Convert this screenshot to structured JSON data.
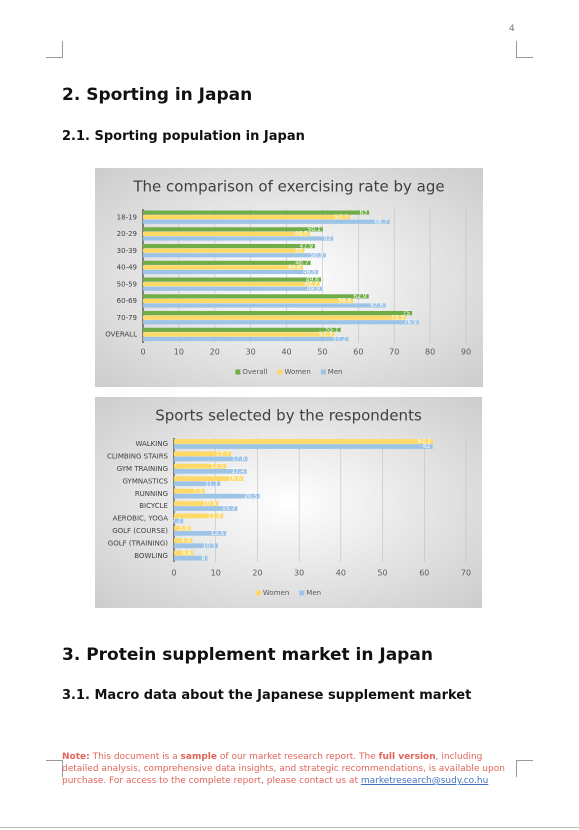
{
  "document": {
    "page_number": "4",
    "heading_1": "2. Sporting in Japan",
    "heading_2": "2.1. Sporting population in Japan",
    "heading_3": "3. Protein supplement market in Japan",
    "heading_4": "3.1. Macro data about the Japanese supplement market",
    "note": {
      "label": "Note:",
      "text_1": " This document is a ",
      "bold_1": "sample",
      "text_2": " of our market research report. The ",
      "bold_2": "full version",
      "text_3": ", including detailed analysis, comprehensive data insights, and strategic recommendations, is available upon purchase. For access to the complete report, please contact us at ",
      "email": "marketresearch@sudy.co.hu"
    }
  },
  "chart_data": [
    {
      "type": "hbar",
      "title": "The comparison of exercising rate by age",
      "categories": [
        "18-19",
        "20-29",
        "30-39",
        "40-49",
        "50-59",
        "60-69",
        "70-79",
        "OVERALL"
      ],
      "series": [
        {
          "name": "Overall",
          "color": "#70ad47",
          "values": [
            63,
            50.1,
            47.9,
            46.7,
            49.6,
            62.9,
            75,
            55.1
          ]
        },
        {
          "name": "Women",
          "color": "#ffd966",
          "values": [
            57.7,
            46.5,
            45,
            44.6,
            49.2,
            58.6,
            73.3,
            53.3
          ]
        },
        {
          "name": "Men",
          "color": "#9dc3e6",
          "values": [
            68.7,
            53,
            50.9,
            48.8,
            49.9,
            67.6,
            76.9,
            57.2
          ]
        }
      ],
      "xlim": [
        0,
        90
      ],
      "xticks": [
        0,
        10,
        20,
        30,
        40,
        50,
        60,
        70,
        80,
        90
      ],
      "grid": true,
      "legend": "bottom"
    },
    {
      "type": "hbar",
      "title": "Sports selected by the respondents",
      "categories": [
        "WALKING",
        "CLIMBING STAIRS",
        "GYM TRAINING",
        "GYMNASTICS",
        "RUNNING",
        "BICYCLE",
        "AEROBIC, YOGA",
        "GOLF (COURSE)",
        "GOLF (TRAINING)",
        "BOWLING"
      ],
      "series": [
        {
          "name": "Women",
          "color": "#ffd966",
          "values": [
            62.1,
            13.7,
            12.5,
            16.6,
            7.3,
            10.6,
            11.8,
            3.9,
            4.4,
            4.6
          ]
        },
        {
          "name": "Men",
          "color": "#9dc3e6",
          "values": [
            62,
            17.6,
            17.4,
            11.1,
            20.5,
            15.2,
            2.2,
            12.5,
            10.5,
            8
          ]
        }
      ],
      "xlim": [
        0,
        70
      ],
      "xticks": [
        0,
        10,
        20,
        30,
        40,
        50,
        60,
        70
      ],
      "grid": true,
      "legend": "bottom"
    }
  ]
}
